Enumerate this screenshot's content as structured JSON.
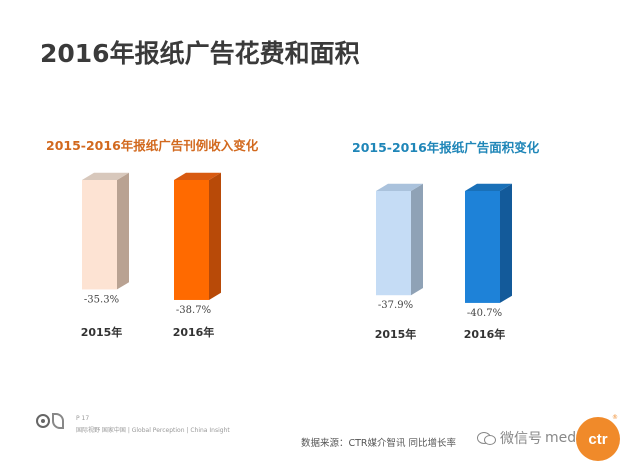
{
  "page": {
    "title": "2016年报纸广告花费和面积"
  },
  "chart_data": [
    {
      "type": "bar",
      "title": "2015-2016年报纸广告刊例收入变化",
      "categories": [
        "2015年",
        "2016年"
      ],
      "values": [
        -35.3,
        -38.7
      ],
      "value_labels": [
        "-35.3%",
        "-38.7%"
      ],
      "colors": [
        "#fde3d3",
        "#ff6a00"
      ],
      "side_colors": [
        "#b9a292",
        "#b84a08"
      ],
      "top_colors": [
        "#d8c8bc",
        "#d85a10"
      ],
      "ylim": [
        -45,
        0
      ],
      "grid": false,
      "legend": "none"
    },
    {
      "type": "bar",
      "title": "2015-2016年报纸广告面积变化",
      "categories": [
        "2015年",
        "2016年"
      ],
      "values": [
        -37.9,
        -40.7
      ],
      "value_labels": [
        "-37.9%",
        "-40.7%"
      ],
      "colors": [
        "#c5dcf5",
        "#1e82d8"
      ],
      "side_colors": [
        "#8fa2b6",
        "#135a9a"
      ],
      "top_colors": [
        "#aac2dc",
        "#1970b8"
      ],
      "ylim": [
        -45,
        0
      ],
      "grid": false,
      "legend": "none"
    }
  ],
  "footer": {
    "page_number": "P 17",
    "tagline": "国际视野  国家中国 | Global Perception | China Insight",
    "source": "数据来源：CTR媒介智讯   同比增长率",
    "watermark": "微信号",
    "watermark_tail": "medium",
    "logo_text": "ctr"
  }
}
